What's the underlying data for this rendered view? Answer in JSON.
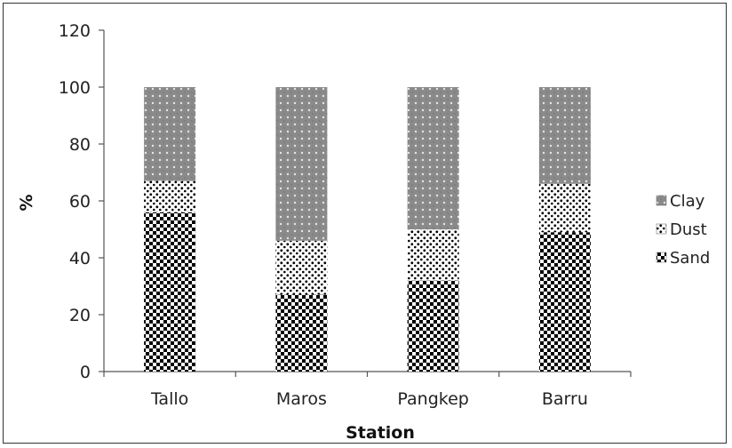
{
  "chart_data": {
    "type": "bar",
    "stacked": true,
    "categories": [
      "Tallo",
      "Maros",
      "Pangkep",
      "Barru"
    ],
    "series": [
      {
        "name": "Sand",
        "values": [
          56,
          27,
          32,
          49
        ],
        "pattern": "checker"
      },
      {
        "name": "Dust",
        "values": [
          11,
          19,
          18,
          17
        ],
        "pattern": "speckle"
      },
      {
        "name": "Clay",
        "values": [
          33,
          54,
          50,
          34
        ],
        "pattern": "grey-dotted"
      }
    ],
    "legend_order": [
      "Clay",
      "Dust",
      "Sand"
    ],
    "xlabel": "Station",
    "ylabel": "%",
    "ylim": [
      0,
      120
    ],
    "yticks": [
      0,
      20,
      40,
      60,
      80,
      100,
      120
    ],
    "grid": false,
    "legend_position": "right"
  }
}
